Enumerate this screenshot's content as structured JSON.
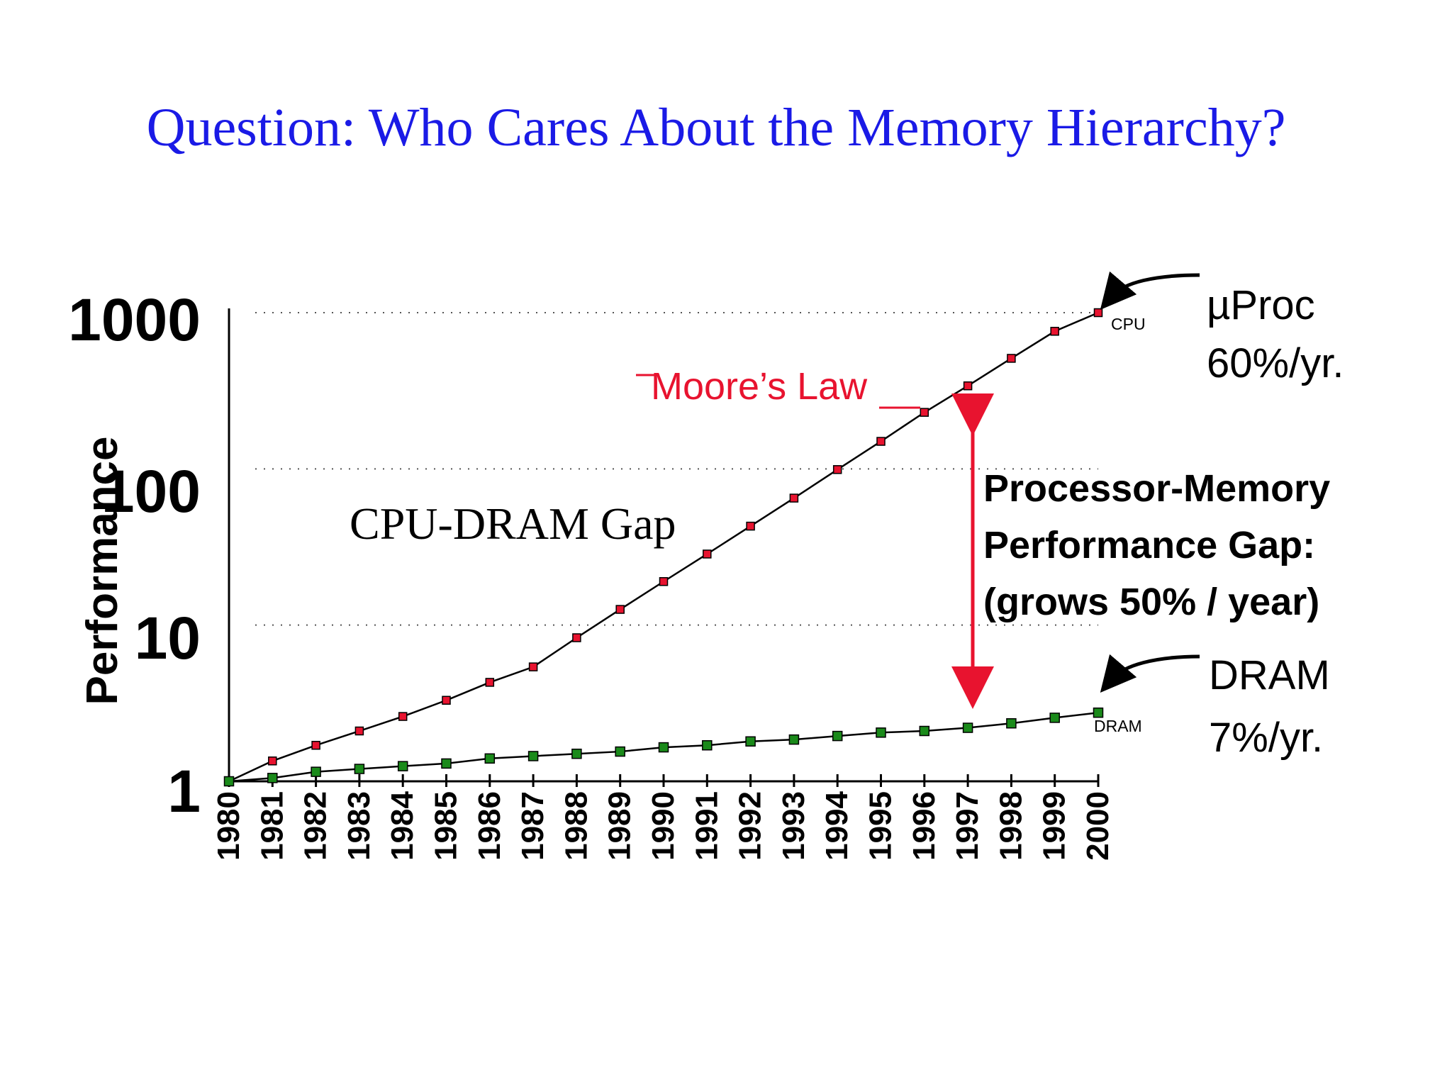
{
  "title": "Question: Who Cares About the Memory Hierarchy?",
  "annotations": {
    "cpu_dram_gap": "CPU-DRAM Gap",
    "moores_law": "Moore’s Law",
    "cpu_tag": "CPU",
    "dram_tag": "DRAM",
    "uproc_line1": "µProc",
    "uproc_line2": "60%/yr.",
    "dram_line1": "DRAM",
    "dram_line2": "7%/yr.",
    "gap_line1": "Processor-Memory",
    "gap_line2": "Performance Gap:",
    "gap_line3": "(grows 50% / year)"
  },
  "colors": {
    "title": "#1a1ae6",
    "cpu_marker": "#e8132f",
    "dram_marker": "#1a8a1a",
    "arrow": "#e8132f",
    "moores_law": "#e8132f"
  },
  "chart_data": {
    "type": "line",
    "ylabel": "Performance",
    "xlabel": "",
    "yscale": "log",
    "ylim": [
      1,
      1000
    ],
    "yticks": [
      1,
      10,
      100,
      1000
    ],
    "ytick_labels": [
      "1",
      "10",
      "100",
      "1000"
    ],
    "grid": "horizontal dotted",
    "categories": [
      "1980",
      "1981",
      "1982",
      "1983",
      "1984",
      "1985",
      "1986",
      "1987",
      "1988",
      "1989",
      "1990",
      "1991",
      "1992",
      "1993",
      "1994",
      "1995",
      "1996",
      "1997",
      "1998",
      "1999",
      "2000"
    ],
    "series": [
      {
        "name": "CPU",
        "marker_color": "#e8132f",
        "values": [
          1,
          1.35,
          1.7,
          2.1,
          2.6,
          3.3,
          4.3,
          5.4,
          8.3,
          12.6,
          19,
          28.5,
          43,
          65,
          99,
          150,
          230,
          340,
          510,
          760,
          1000
        ]
      },
      {
        "name": "DRAM",
        "marker_color": "#1a8a1a",
        "values": [
          1,
          1.05,
          1.15,
          1.2,
          1.25,
          1.3,
          1.4,
          1.45,
          1.5,
          1.55,
          1.65,
          1.7,
          1.8,
          1.85,
          1.95,
          2.05,
          2.1,
          2.2,
          2.35,
          2.55,
          2.75
        ]
      }
    ]
  }
}
